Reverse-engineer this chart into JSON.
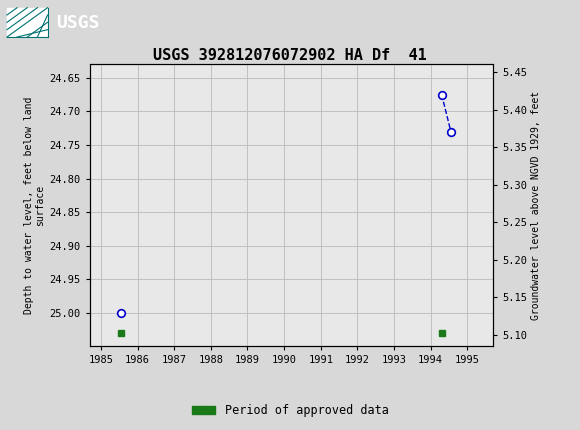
{
  "title": "USGS 392812076072902 HA Df  41",
  "title_fontsize": 11,
  "ylabel_left": "Depth to water level, feet below land\nsurface",
  "ylabel_right": "Groundwater level above NGVD 1929, feet",
  "ylim_left": [
    25.05,
    24.63
  ],
  "ylim_right": [
    5.085,
    5.46
  ],
  "xlim": [
    1984.7,
    1995.7
  ],
  "xticks": [
    1985,
    1986,
    1987,
    1988,
    1989,
    1990,
    1991,
    1992,
    1993,
    1994,
    1995
  ],
  "yticks_left": [
    24.65,
    24.7,
    24.75,
    24.8,
    24.85,
    24.9,
    24.95,
    25.0
  ],
  "yticks_right": [
    5.1,
    5.15,
    5.2,
    5.25,
    5.3,
    5.35,
    5.4,
    5.45
  ],
  "data_points_x": [
    1985.55,
    1994.3,
    1994.55
  ],
  "data_points_y": [
    25.0,
    24.675,
    24.73
  ],
  "green_sq1_x": 1985.55,
  "green_sq2_x": 1994.3,
  "green_sq_y": 25.03,
  "plot_color": "#0000cc",
  "green_color": "#1a7a1a",
  "bg_color": "#e8e8e8",
  "header_bg": "#007070",
  "grid_color": "#c0c0c0",
  "legend_label": "Period of approved data",
  "font_family": "monospace"
}
